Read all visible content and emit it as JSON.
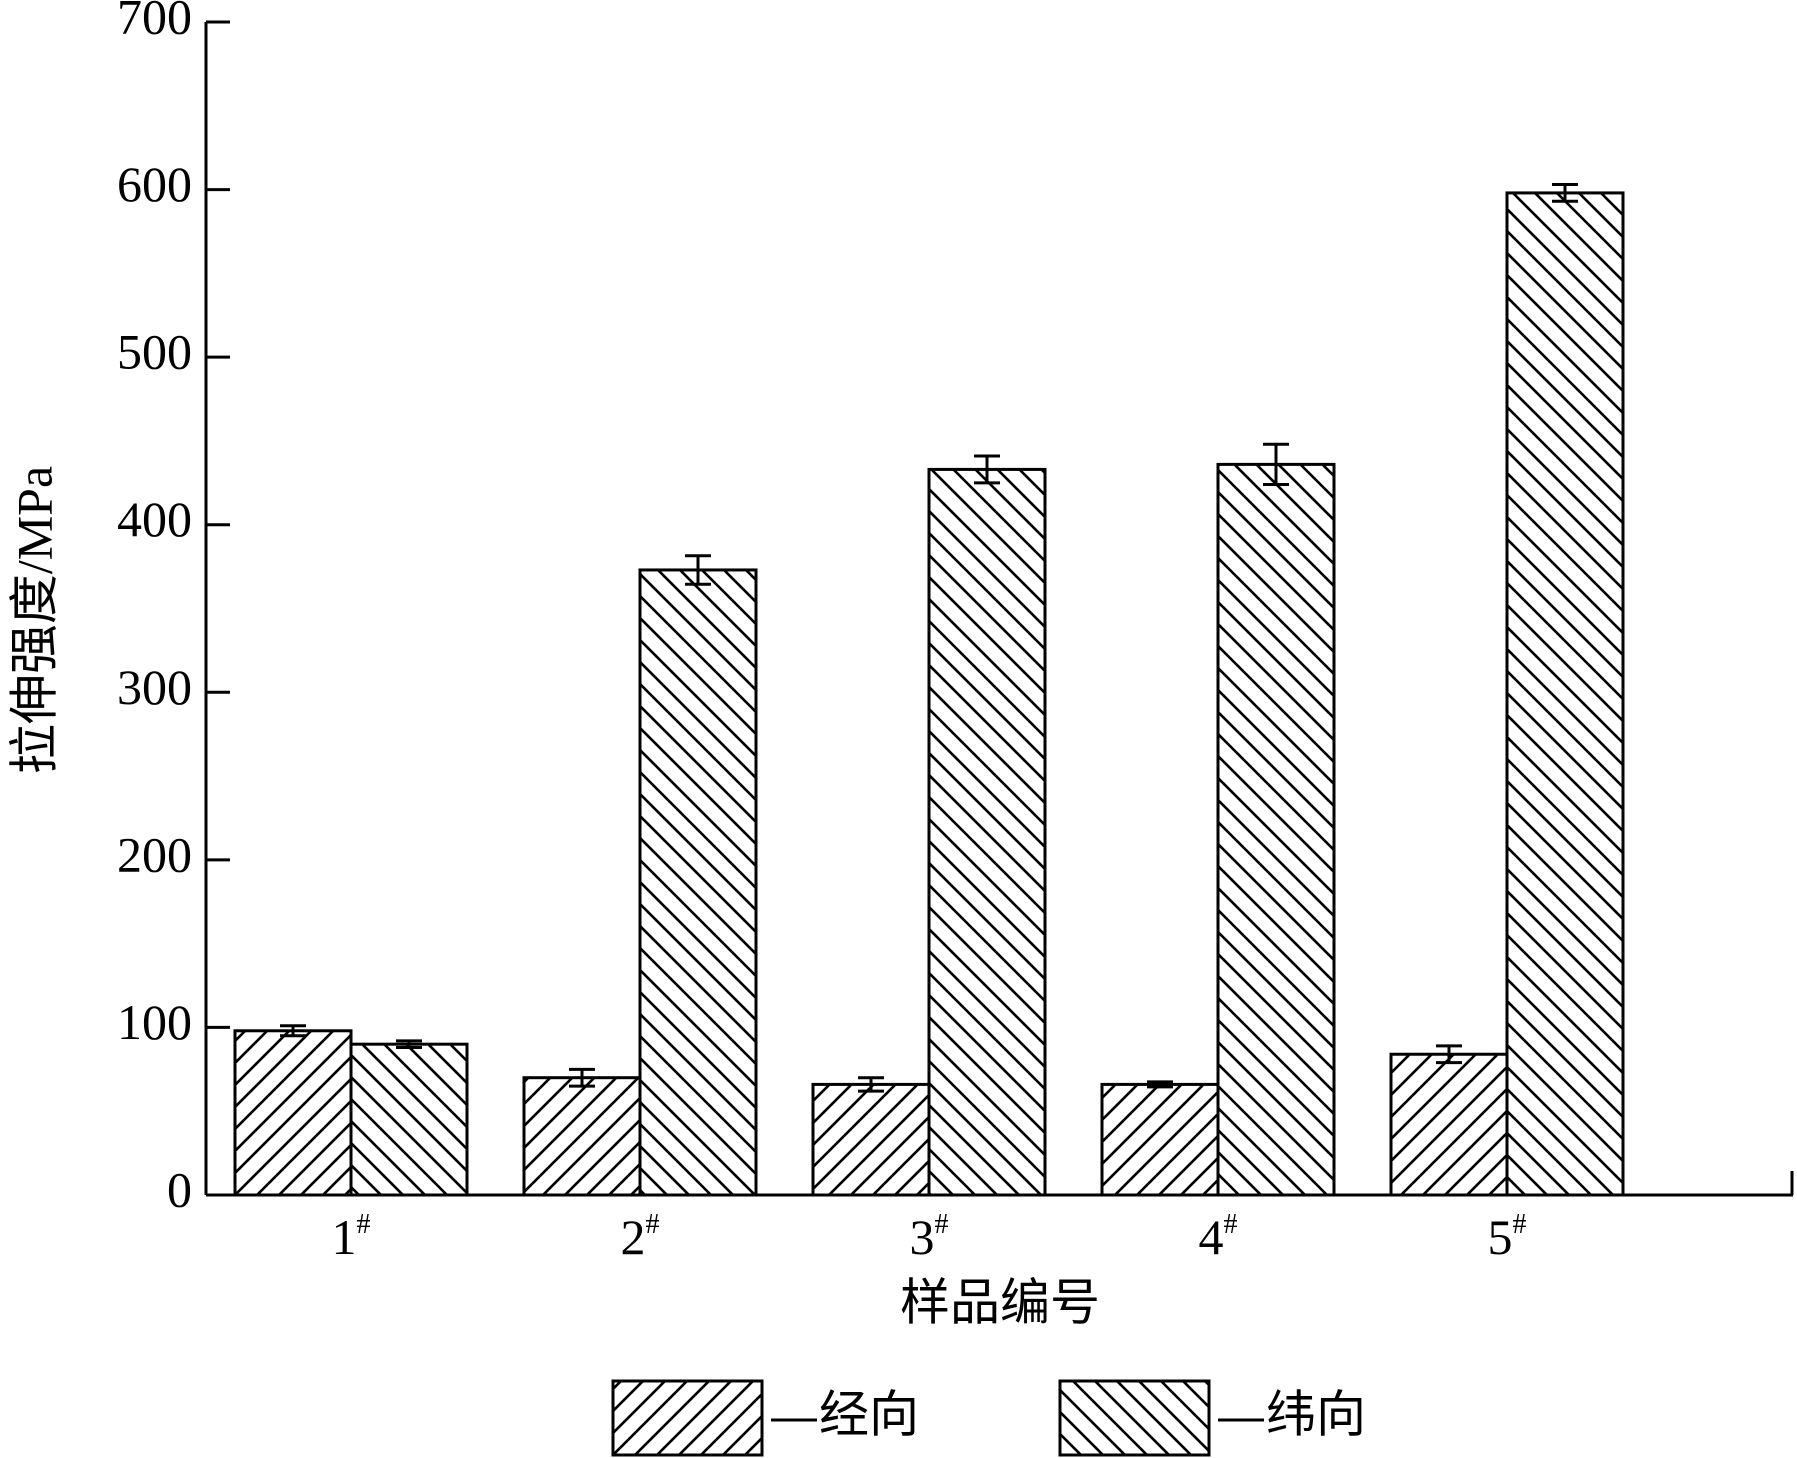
{
  "chart_data": {
    "type": "bar",
    "y_label": "拉伸强度/MPa",
    "x_label": "样品编号",
    "categories": [
      "1#",
      "2#",
      "3#",
      "4#",
      "5#"
    ],
    "series": [
      {
        "name": "经向",
        "color": "#000000",
        "hatch": "forward",
        "values": [
          98,
          70,
          66,
          66,
          84
        ],
        "errors": [
          3,
          5,
          4,
          1.5,
          5
        ]
      },
      {
        "name": "纬向",
        "color": "#000000",
        "hatch": "backward",
        "values": [
          90,
          373,
          433,
          436,
          598
        ],
        "errors": [
          2,
          8.5,
          8,
          12,
          5
        ]
      }
    ],
    "ylim": [
      0,
      700
    ],
    "yticks": [
      0,
      100,
      200,
      300,
      400,
      500,
      600,
      700
    ],
    "grid": false
  }
}
